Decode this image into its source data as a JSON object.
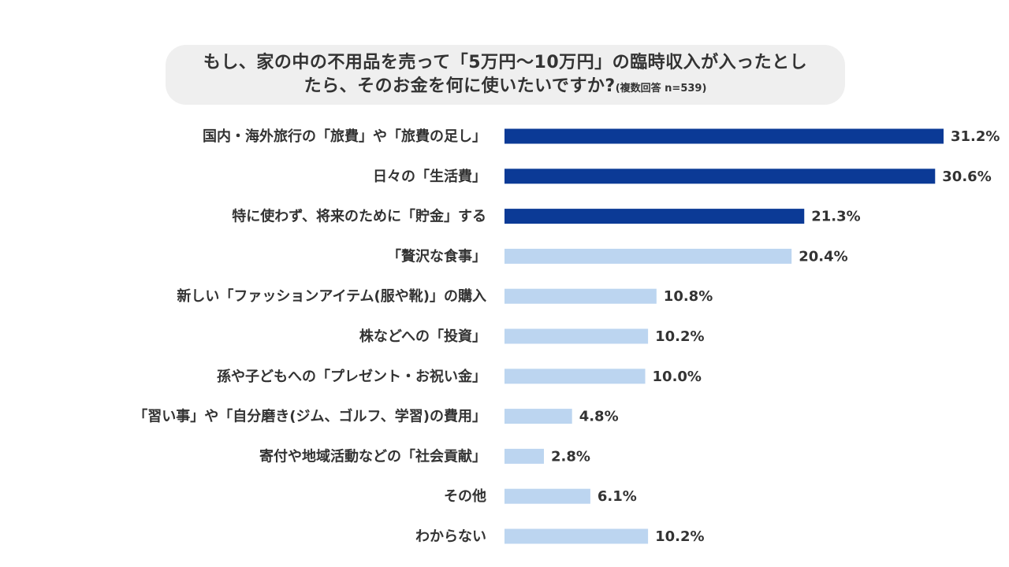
{
  "title": {
    "line1": "もし、家の中の不用品を売って「5万円〜10万円」の臨時収入が入ったとし",
    "line2": "たら、そのお金を何に使いたいですか?",
    "note": "(複数回答 n=539)"
  },
  "colors": {
    "highlight": "#0b3a96",
    "normal": "#bcd5f0",
    "text": "#333333",
    "title_bg": "#efefef"
  },
  "chart_data": {
    "type": "bar",
    "orientation": "horizontal",
    "categories": [
      "国内・海外旅行の「旅費」や「旅費の足し」",
      "日々の「生活費」",
      "特に使わず、将来のために「貯金」する",
      "「贅沢な食事」",
      "新しい「ファッションアイテム(服や靴)」の購入",
      "株などへの「投資」",
      "孫や子どもへの「プレゼント・お祝い金」",
      "「習い事」や「自分磨き(ジム、ゴルフ、学習)の費用」",
      "寄付や地域活動などの「社会貢献」",
      "その他",
      "わからない"
    ],
    "values": [
      31.2,
      30.6,
      21.3,
      20.4,
      10.8,
      10.2,
      10.0,
      4.8,
      2.8,
      6.1,
      10.2
    ],
    "value_labels": [
      "31.2%",
      "30.6%",
      "21.3%",
      "20.4%",
      "10.8%",
      "10.2%",
      "10.0%",
      "4.8%",
      "2.8%",
      "6.1%",
      "10.2%"
    ],
    "highlighted": [
      true,
      true,
      true,
      false,
      false,
      false,
      false,
      false,
      false,
      false,
      false
    ],
    "xlim": [
      0,
      31.2
    ],
    "grid": false,
    "legend": "none"
  }
}
